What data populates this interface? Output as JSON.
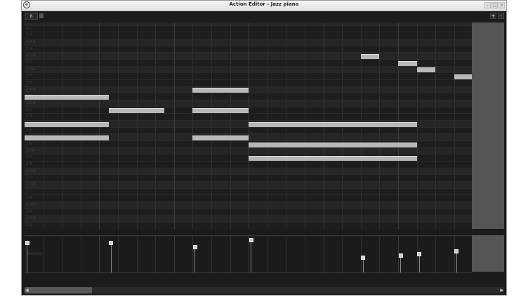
{
  "window": {
    "title": "Action Editor - Jazz piano",
    "controls": [
      "minimize",
      "maximize",
      "close"
    ]
  },
  "toolbar": {
    "snap_value": "6",
    "zoom_in": "+",
    "zoom_out": "-"
  },
  "piano_roll": {
    "rows": [
      "4 C#",
      "4 C",
      "3 B",
      "3 A#",
      "3 A",
      "3 G#",
      "3 G",
      "3 F#",
      "3 F",
      "3 E",
      "3 D#",
      "3 D",
      "3 C#",
      "3 C",
      "2 B",
      "2 A#",
      "2 A",
      "2 G#",
      "2 G",
      "2 F#",
      "2 F",
      "2 E",
      "2 D#",
      "2 D",
      "2 C#",
      "2 C",
      "1 B",
      "1 A#",
      "1 A",
      "1 G#",
      "1 G"
    ],
    "notes": [
      {
        "pitch": "3 D",
        "start": 0,
        "length": 4.5,
        "velocity": 110
      },
      {
        "pitch": "2 A#",
        "start": 0,
        "length": 4.5,
        "velocity": 110
      },
      {
        "pitch": "2 G#",
        "start": 0,
        "length": 4.5,
        "velocity": 110
      },
      {
        "pitch": "3 C",
        "start": 4.5,
        "length": 3,
        "velocity": 108
      },
      {
        "pitch": "3 D#",
        "start": 9,
        "length": 3,
        "velocity": 93
      },
      {
        "pitch": "3 C",
        "start": 9,
        "length": 3,
        "velocity": 93
      },
      {
        "pitch": "2 G#",
        "start": 9,
        "length": 3,
        "velocity": 93
      },
      {
        "pitch": "2 A#",
        "start": 12,
        "length": 9,
        "velocity": 120
      },
      {
        "pitch": "2 G",
        "start": 12,
        "length": 9,
        "velocity": 120
      },
      {
        "pitch": "2 F",
        "start": 12,
        "length": 9,
        "velocity": 120
      },
      {
        "pitch": "3 G#",
        "start": 18,
        "length": 1,
        "velocity": 56
      },
      {
        "pitch": "3 G",
        "start": 20,
        "length": 1,
        "velocity": 64
      },
      {
        "pitch": "3 F#",
        "start": 21,
        "length": 1,
        "velocity": 69
      },
      {
        "pitch": "3 F",
        "start": 23,
        "length": 1,
        "velocity": 79
      }
    ]
  },
  "velocity_lane": {
    "label": "Velocity",
    "max": 127
  },
  "colors": {
    "background": "#1b1b1b",
    "note": "#b8b8b8",
    "panel": "#555555"
  }
}
